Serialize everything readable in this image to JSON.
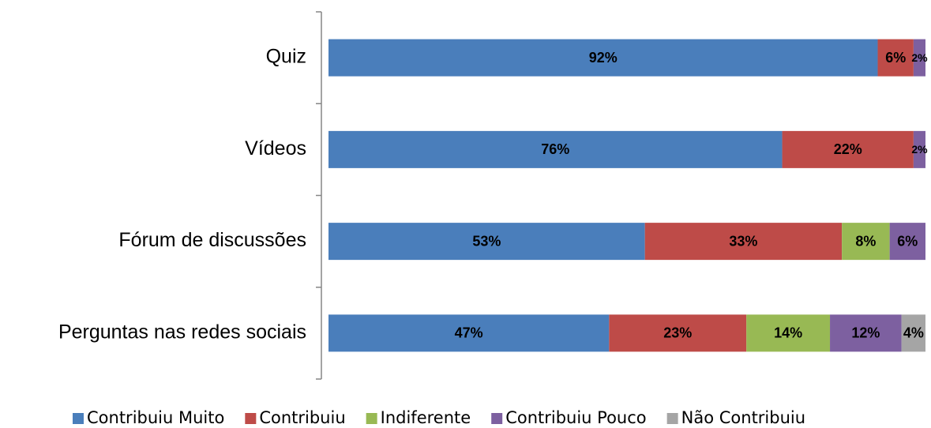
{
  "chart_data": {
    "type": "stacked-bar-horizontal",
    "categories": [
      "Quiz",
      "Vídeos",
      "Fórum de discussões",
      "Perguntas nas redes sociais"
    ],
    "xlim": [
      0,
      100
    ],
    "series": [
      {
        "name": "Contribuiu Muito",
        "color": "#4a7ebb",
        "values": [
          92,
          76,
          53,
          47
        ],
        "value_labels": [
          "92%",
          "76%",
          "53%",
          "47%"
        ]
      },
      {
        "name": "Contribuiu",
        "color": "#be4b48",
        "values": [
          6,
          22,
          33,
          23
        ],
        "value_labels": [
          "6%",
          "22%",
          "33%",
          "23%"
        ]
      },
      {
        "name": "Indiferente",
        "color": "#98b954",
        "values": [
          null,
          null,
          8,
          14
        ],
        "value_labels": [
          null,
          null,
          "8%",
          "14%"
        ]
      },
      {
        "name": "Contribuiu Pouco",
        "color": "#7d60a0",
        "values": [
          2,
          2,
          6,
          12
        ],
        "value_labels": [
          "2%",
          "2%",
          "6%",
          "12%"
        ]
      },
      {
        "name": "Não Contribuiu",
        "color": "#a5a5a5",
        "values": [
          null,
          null,
          null,
          4
        ],
        "value_labels": [
          null,
          null,
          null,
          "4%"
        ]
      }
    ],
    "legend": "bottom"
  }
}
